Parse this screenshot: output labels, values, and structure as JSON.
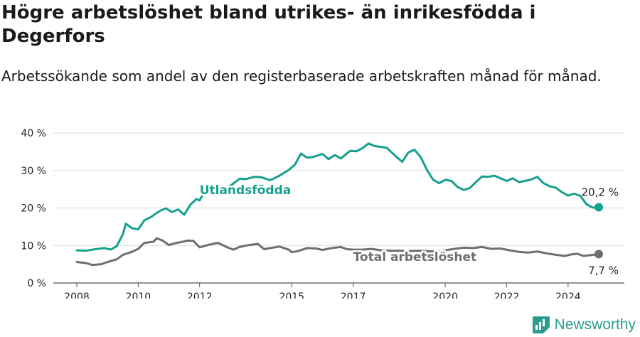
{
  "header": {
    "title": "Högre arbetslöshet bland utrikes- än inrikesfödda i Degerfors",
    "subtitle": "Arbetssökande som andel av den registerbaserade arbetskraften månad för månad."
  },
  "brand": {
    "name": "Newsworthy",
    "color": "#2a9d8f"
  },
  "chart_data": {
    "type": "line",
    "y_unit": "%",
    "ylim": [
      0,
      40
    ],
    "y_ticks": [
      0,
      10,
      20,
      30,
      40
    ],
    "y_tick_labels": [
      "0 %",
      "10 %",
      "20 %",
      "30 %",
      "40 %"
    ],
    "xlim": [
      2008.0,
      2025.0
    ],
    "x_ticks": [
      2008,
      2010,
      2012,
      2015,
      2017,
      2020,
      2022,
      2024
    ],
    "x_tick_labels": [
      "2008",
      "2010",
      "2012",
      "2015",
      "2017",
      "2020",
      "2022",
      "2024"
    ],
    "grid": true,
    "series": [
      {
        "name": "Utlandsfödda",
        "color": "#16a08e",
        "end_label": "20,2 %",
        "points": [
          [
            2008.0,
            8.7
          ],
          [
            2008.3,
            8.6
          ],
          [
            2008.6,
            9.0
          ],
          [
            2008.9,
            9.3
          ],
          [
            2009.1,
            8.9
          ],
          [
            2009.3,
            9.8
          ],
          [
            2009.5,
            13.0
          ],
          [
            2009.6,
            15.8
          ],
          [
            2009.8,
            14.6
          ],
          [
            2010.0,
            14.3
          ],
          [
            2010.2,
            16.7
          ],
          [
            2010.4,
            17.5
          ],
          [
            2010.7,
            19.2
          ],
          [
            2010.9,
            19.9
          ],
          [
            2011.1,
            18.9
          ],
          [
            2011.3,
            19.6
          ],
          [
            2011.5,
            18.2
          ],
          [
            2011.7,
            20.9
          ],
          [
            2011.9,
            22.4
          ],
          [
            2012.0,
            22.0
          ],
          [
            2012.2,
            25.0
          ],
          [
            2012.5,
            25.0
          ],
          [
            2012.8,
            25.2
          ],
          [
            2013.0,
            25.9
          ],
          [
            2013.3,
            27.8
          ],
          [
            2013.5,
            27.7
          ],
          [
            2013.8,
            28.3
          ],
          [
            2014.0,
            28.2
          ],
          [
            2014.3,
            27.4
          ],
          [
            2014.6,
            28.6
          ],
          [
            2014.9,
            30.1
          ],
          [
            2015.1,
            31.5
          ],
          [
            2015.3,
            34.5
          ],
          [
            2015.5,
            33.4
          ],
          [
            2015.7,
            33.6
          ],
          [
            2016.0,
            34.4
          ],
          [
            2016.2,
            33.0
          ],
          [
            2016.4,
            34.1
          ],
          [
            2016.6,
            33.2
          ],
          [
            2016.9,
            35.2
          ],
          [
            2017.1,
            35.1
          ],
          [
            2017.3,
            35.9
          ],
          [
            2017.5,
            37.2
          ],
          [
            2017.7,
            36.5
          ],
          [
            2017.9,
            36.3
          ],
          [
            2018.1,
            36.0
          ],
          [
            2018.4,
            33.7
          ],
          [
            2018.6,
            32.3
          ],
          [
            2018.8,
            34.8
          ],
          [
            2019.0,
            35.5
          ],
          [
            2019.2,
            33.6
          ],
          [
            2019.4,
            30.2
          ],
          [
            2019.6,
            27.6
          ],
          [
            2019.8,
            26.6
          ],
          [
            2020.0,
            27.5
          ],
          [
            2020.2,
            27.2
          ],
          [
            2020.4,
            25.6
          ],
          [
            2020.6,
            24.8
          ],
          [
            2020.8,
            25.3
          ],
          [
            2021.0,
            26.9
          ],
          [
            2021.2,
            28.4
          ],
          [
            2021.4,
            28.3
          ],
          [
            2021.6,
            28.6
          ],
          [
            2021.8,
            27.9
          ],
          [
            2022.0,
            27.2
          ],
          [
            2022.2,
            27.9
          ],
          [
            2022.4,
            26.9
          ],
          [
            2022.6,
            27.2
          ],
          [
            2022.8,
            27.6
          ],
          [
            2023.0,
            28.3
          ],
          [
            2023.2,
            26.6
          ],
          [
            2023.4,
            25.8
          ],
          [
            2023.6,
            25.4
          ],
          [
            2023.8,
            24.2
          ],
          [
            2024.0,
            23.3
          ],
          [
            2024.2,
            23.8
          ],
          [
            2024.4,
            23.2
          ],
          [
            2024.6,
            21.0
          ],
          [
            2024.8,
            20.1
          ],
          [
            2025.0,
            20.2
          ]
        ]
      },
      {
        "name": "Total arbetslöshet",
        "color": "#6e6e6e",
        "end_label": "7,7 %",
        "points": [
          [
            2008.0,
            5.6
          ],
          [
            2008.3,
            5.3
          ],
          [
            2008.5,
            4.8
          ],
          [
            2008.8,
            5.0
          ],
          [
            2009.0,
            5.6
          ],
          [
            2009.3,
            6.3
          ],
          [
            2009.5,
            7.5
          ],
          [
            2009.8,
            8.3
          ],
          [
            2010.0,
            9.1
          ],
          [
            2010.2,
            10.7
          ],
          [
            2010.5,
            11.0
          ],
          [
            2010.6,
            11.9
          ],
          [
            2010.8,
            11.3
          ],
          [
            2011.0,
            10.1
          ],
          [
            2011.2,
            10.6
          ],
          [
            2011.4,
            10.9
          ],
          [
            2011.6,
            11.3
          ],
          [
            2011.8,
            11.2
          ],
          [
            2012.0,
            9.5
          ],
          [
            2012.3,
            10.2
          ],
          [
            2012.6,
            10.7
          ],
          [
            2012.9,
            9.5
          ],
          [
            2013.1,
            8.9
          ],
          [
            2013.3,
            9.6
          ],
          [
            2013.6,
            10.1
          ],
          [
            2013.9,
            10.4
          ],
          [
            2014.1,
            9.0
          ],
          [
            2014.3,
            9.3
          ],
          [
            2014.6,
            9.7
          ],
          [
            2014.9,
            8.9
          ],
          [
            2015.0,
            8.2
          ],
          [
            2015.2,
            8.5
          ],
          [
            2015.5,
            9.3
          ],
          [
            2015.8,
            9.2
          ],
          [
            2016.0,
            8.8
          ],
          [
            2016.3,
            9.3
          ],
          [
            2016.6,
            9.6
          ],
          [
            2016.8,
            9.0
          ],
          [
            2017.0,
            8.9
          ],
          [
            2017.3,
            8.9
          ],
          [
            2017.6,
            9.1
          ],
          [
            2017.9,
            8.7
          ],
          [
            2018.2,
            8.6
          ],
          [
            2018.5,
            8.6
          ],
          [
            2018.8,
            8.5
          ],
          [
            2019.1,
            8.6
          ],
          [
            2019.4,
            8.5
          ],
          [
            2019.7,
            8.4
          ],
          [
            2020.0,
            8.7
          ],
          [
            2020.3,
            9.1
          ],
          [
            2020.6,
            9.4
          ],
          [
            2020.9,
            9.3
          ],
          [
            2021.2,
            9.6
          ],
          [
            2021.5,
            9.1
          ],
          [
            2021.8,
            9.2
          ],
          [
            2022.1,
            8.7
          ],
          [
            2022.4,
            8.3
          ],
          [
            2022.7,
            8.1
          ],
          [
            2023.0,
            8.4
          ],
          [
            2023.3,
            7.9
          ],
          [
            2023.6,
            7.5
          ],
          [
            2023.9,
            7.2
          ],
          [
            2024.1,
            7.6
          ],
          [
            2024.3,
            7.8
          ],
          [
            2024.5,
            7.2
          ],
          [
            2024.7,
            7.4
          ],
          [
            2025.0,
            7.7
          ]
        ]
      }
    ]
  }
}
